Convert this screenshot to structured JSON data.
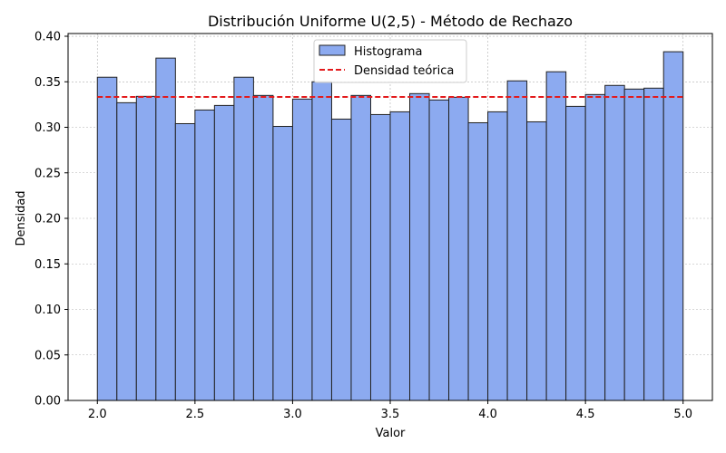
{
  "chart_data": {
    "type": "bar",
    "title": "Distribución Uniforme U(2,5) - Método de Rechazo",
    "xlabel": "Valor",
    "ylabel": "Densidad",
    "xlim": [
      1.85,
      5.15
    ],
    "ylim": [
      0.0,
      0.403
    ],
    "grid": true,
    "legend_position": "top-center",
    "x_ticks": [
      "2.0",
      "2.5",
      "3.0",
      "3.5",
      "4.0",
      "4.5",
      "5.0"
    ],
    "y_ticks": [
      "0.00",
      "0.05",
      "0.10",
      "0.15",
      "0.20",
      "0.25",
      "0.30",
      "0.35",
      "0.40"
    ],
    "bin_edges": [
      2.0,
      2.1,
      2.2,
      2.3,
      2.4,
      2.5,
      2.6,
      2.7,
      2.8,
      2.9,
      3.0,
      3.1,
      3.2,
      3.3,
      3.4,
      3.5,
      3.6,
      3.7,
      3.8,
      3.9,
      4.0,
      4.1,
      4.2,
      4.3,
      4.4,
      4.5,
      4.6,
      4.7,
      4.8,
      4.9,
      5.0
    ],
    "series": [
      {
        "name": "Histograma",
        "type": "histogram",
        "color": "#8caaf0",
        "edge_color": "#222222",
        "values": [
          0.355,
          0.327,
          0.334,
          0.376,
          0.304,
          0.319,
          0.324,
          0.355,
          0.335,
          0.301,
          0.331,
          0.35,
          0.309,
          0.335,
          0.314,
          0.317,
          0.337,
          0.33,
          0.333,
          0.305,
          0.317,
          0.351,
          0.306,
          0.361,
          0.323,
          0.336,
          0.346,
          0.342,
          0.343,
          0.383
        ]
      },
      {
        "name": "Densidad teórica",
        "type": "line",
        "style": "dashed",
        "color": "#e31a1c",
        "x": [
          2.0,
          5.0
        ],
        "y": [
          0.3333,
          0.3333
        ]
      }
    ]
  }
}
